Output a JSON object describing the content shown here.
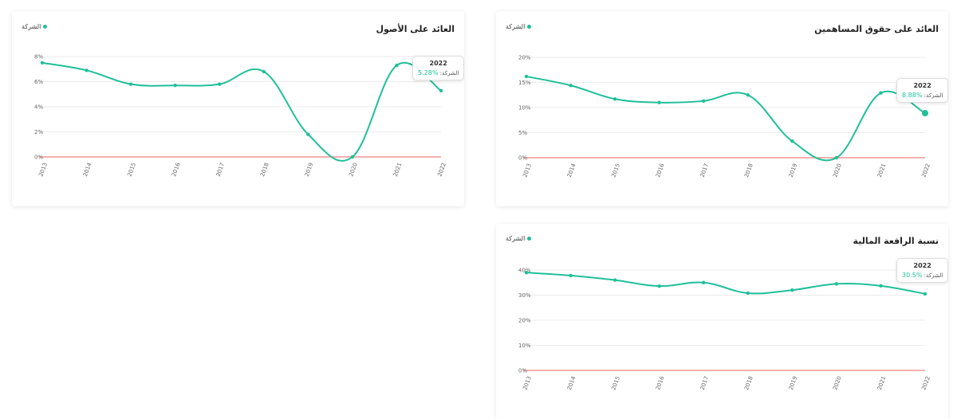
{
  "colors": {
    "line": "#1fbf9a",
    "zero_line": "#f08080",
    "grid": "#e4e4e4"
  },
  "charts": [
    {
      "title": "العائد على الأصول",
      "legend": "الشركة",
      "tooltip": {
        "year": "2022",
        "label": "الشركة:",
        "value": "%5.28"
      },
      "chart_data": {
        "type": "line",
        "title": "العائد على الأصول",
        "x": [
          "2013",
          "2014",
          "2015",
          "2016",
          "2017",
          "2018",
          "2019",
          "2020",
          "2021",
          "2022"
        ],
        "series": [
          {
            "name": "الشركة",
            "values": [
              7.5,
              6.9,
              5.8,
              5.7,
              5.8,
              6.8,
              1.8,
              0.0,
              7.3,
              5.28
            ]
          }
        ],
        "y_ticks": [
          "0%",
          "2%",
          "4%",
          "6%",
          "8%"
        ],
        "ylim": [
          0,
          8
        ],
        "grid": true,
        "legend_position": "top-left",
        "highlight_index": 9
      }
    },
    {
      "title": "العائد على حقوق المساهمين",
      "legend": "الشركة",
      "tooltip": {
        "year": "2022",
        "label": "الشركة:",
        "value": "%8.88"
      },
      "chart_data": {
        "type": "line",
        "title": "العائد على حقوق المساهمين",
        "x": [
          "2013",
          "2014",
          "2015",
          "2016",
          "2017",
          "2018",
          "2019",
          "2020",
          "2021",
          "2022"
        ],
        "series": [
          {
            "name": "الشركة",
            "values": [
              16.2,
              14.4,
              11.7,
              11.0,
              11.3,
              12.5,
              3.3,
              0.0,
              12.9,
              8.88
            ]
          }
        ],
        "y_ticks": [
          "0%",
          "5%",
          "10%",
          "15%",
          "20%"
        ],
        "ylim": [
          0,
          20
        ],
        "grid": true,
        "legend_position": "top-left",
        "highlight_index": 9
      }
    },
    {
      "title": "نسبة الرافعة المالية",
      "legend": "الشركة",
      "tooltip": {
        "year": "2022",
        "label": "الشركة:",
        "value": "%30.5"
      },
      "chart_data": {
        "type": "line",
        "title": "نسبة الرافعة المالية",
        "x": [
          "2013",
          "2014",
          "2015",
          "2016",
          "2017",
          "2018",
          "2019",
          "2020",
          "2021",
          "2022"
        ],
        "series": [
          {
            "name": "الشركة",
            "values": [
              39.0,
              37.8,
              36.0,
              33.6,
              35.0,
              30.8,
              32.0,
              34.5,
              33.7,
              30.5
            ]
          }
        ],
        "y_ticks": [
          "0%",
          "10%",
          "20%",
          "30%",
          "40%"
        ],
        "ylim": [
          0,
          40
        ],
        "grid": true,
        "legend_position": "top-left",
        "highlight_index": 9
      }
    }
  ]
}
